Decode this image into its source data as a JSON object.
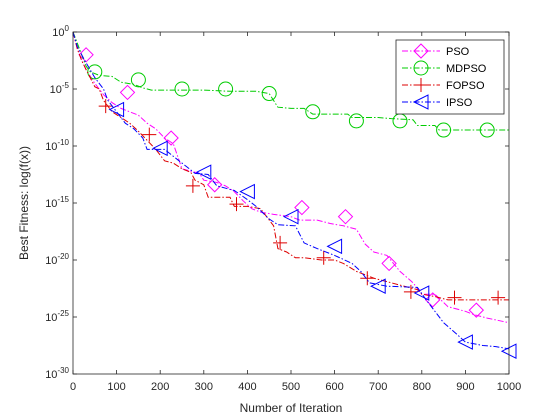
{
  "chart_data": {
    "type": "line",
    "title": "",
    "xlabel": "Number of Iteration",
    "ylabel": "Best Fitness: log(f(x))",
    "xlim": [
      0,
      1000
    ],
    "ylim_exp": [
      -30,
      0
    ],
    "y_scale": "log",
    "x_ticks": [
      "0",
      "100",
      "200",
      "300",
      "400",
      "500",
      "600",
      "700",
      "800",
      "900",
      "1000"
    ],
    "y_tick_exponents": [
      0,
      -5,
      -10,
      -15,
      -20,
      -25,
      -30
    ],
    "y_tick_base": "10",
    "grid": false,
    "legend_position": "top-right",
    "series": [
      {
        "name": "PSO",
        "color": "#ff00ff",
        "marker": "diamond",
        "points": [
          [
            0,
            0
          ],
          [
            10,
            -1.5
          ],
          [
            20,
            -2.5
          ],
          [
            30,
            -3.3
          ],
          [
            50,
            -4.5
          ],
          [
            70,
            -5.5
          ],
          [
            90,
            -6.2
          ],
          [
            110,
            -6.7
          ],
          [
            130,
            -7
          ],
          [
            150,
            -7.3
          ],
          [
            170,
            -8
          ],
          [
            190,
            -8.5
          ],
          [
            210,
            -9.3
          ],
          [
            230,
            -9.8
          ],
          [
            250,
            -12
          ],
          [
            290,
            -12.4
          ],
          [
            300,
            -13
          ],
          [
            330,
            -13.2
          ],
          [
            350,
            -13.5
          ],
          [
            370,
            -14
          ],
          [
            390,
            -14.8
          ],
          [
            410,
            -15.5
          ],
          [
            430,
            -15.8
          ],
          [
            460,
            -16
          ],
          [
            500,
            -16.2
          ],
          [
            520,
            -16.5
          ],
          [
            560,
            -16.5
          ],
          [
            590,
            -16.8
          ],
          [
            620,
            -17
          ],
          [
            650,
            -17.3
          ],
          [
            670,
            -18.6
          ],
          [
            690,
            -19.3
          ],
          [
            720,
            -19.6
          ],
          [
            750,
            -21
          ],
          [
            780,
            -22
          ],
          [
            800,
            -23
          ],
          [
            830,
            -23
          ],
          [
            860,
            -24.1
          ],
          [
            900,
            -24.5
          ],
          [
            920,
            -24.8
          ],
          [
            950,
            -25.1
          ],
          [
            1000,
            -25.5
          ]
        ],
        "markers": [
          [
            30,
            -2
          ],
          [
            125,
            -5.3
          ],
          [
            225,
            -9.3
          ],
          [
            325,
            -13.4
          ],
          [
            525,
            -15.4
          ],
          [
            625,
            -16.2
          ],
          [
            725,
            -20.3
          ],
          [
            825,
            -23.5
          ],
          [
            925,
            -24.4
          ]
        ]
      },
      {
        "name": "MDPSO",
        "color": "#00cc00",
        "marker": "circle",
        "points": [
          [
            0,
            0
          ],
          [
            10,
            -1
          ],
          [
            20,
            -2
          ],
          [
            30,
            -3
          ],
          [
            40,
            -3.5
          ],
          [
            60,
            -3.8
          ],
          [
            90,
            -3.9
          ],
          [
            110,
            -4.4
          ],
          [
            140,
            -4.6
          ],
          [
            160,
            -4.9
          ],
          [
            180,
            -5.1
          ],
          [
            240,
            -5.1
          ],
          [
            300,
            -5.1
          ],
          [
            360,
            -5.2
          ],
          [
            420,
            -5.2
          ],
          [
            450,
            -5.4
          ],
          [
            470,
            -6.6
          ],
          [
            500,
            -6.7
          ],
          [
            530,
            -6.7
          ],
          [
            550,
            -7.2
          ],
          [
            630,
            -7.2
          ],
          [
            640,
            -7.5
          ],
          [
            700,
            -7.5
          ],
          [
            730,
            -7.6
          ],
          [
            780,
            -7.7
          ],
          [
            790,
            -8.2
          ],
          [
            830,
            -8.2
          ],
          [
            840,
            -8.6
          ],
          [
            900,
            -8.6
          ],
          [
            940,
            -8.6
          ],
          [
            1000,
            -8.6
          ]
        ],
        "markers": [
          [
            50,
            -3.5
          ],
          [
            150,
            -4.2
          ],
          [
            250,
            -5
          ],
          [
            350,
            -5
          ],
          [
            450,
            -5.4
          ],
          [
            550,
            -7
          ],
          [
            650,
            -7.8
          ],
          [
            750,
            -7.8
          ],
          [
            850,
            -8.6
          ],
          [
            950,
            -8.6
          ]
        ]
      },
      {
        "name": "FOPSO",
        "color": "#dd0000",
        "marker": "plus",
        "points": [
          [
            0,
            0
          ],
          [
            10,
            -1.5
          ],
          [
            20,
            -2.5
          ],
          [
            30,
            -3.3
          ],
          [
            50,
            -4.8
          ],
          [
            60,
            -5
          ],
          [
            70,
            -6
          ],
          [
            90,
            -7
          ],
          [
            110,
            -7.5
          ],
          [
            130,
            -8
          ],
          [
            150,
            -8.7
          ],
          [
            170,
            -9.5
          ],
          [
            190,
            -10.3
          ],
          [
            210,
            -11.3
          ],
          [
            230,
            -11.5
          ],
          [
            250,
            -12
          ],
          [
            270,
            -12.3
          ],
          [
            280,
            -13
          ],
          [
            300,
            -13.4
          ],
          [
            310,
            -14.5
          ],
          [
            360,
            -14.5
          ],
          [
            370,
            -15.3
          ],
          [
            400,
            -15.3
          ],
          [
            430,
            -15.5
          ],
          [
            460,
            -17
          ],
          [
            470,
            -19
          ],
          [
            490,
            -19.3
          ],
          [
            510,
            -19.8
          ],
          [
            530,
            -19.8
          ],
          [
            570,
            -20
          ],
          [
            600,
            -20
          ],
          [
            620,
            -20.3
          ],
          [
            650,
            -21
          ],
          [
            690,
            -21.6
          ],
          [
            750,
            -22.2
          ],
          [
            790,
            -22.6
          ],
          [
            800,
            -23
          ],
          [
            830,
            -23.2
          ],
          [
            860,
            -23.5
          ],
          [
            1000,
            -23.5
          ]
        ],
        "markers": [
          [
            75,
            -6.5
          ],
          [
            175,
            -9
          ],
          [
            275,
            -13.5
          ],
          [
            375,
            -15.1
          ],
          [
            475,
            -18.5
          ],
          [
            575,
            -19.8
          ],
          [
            675,
            -21.6
          ],
          [
            775,
            -22.8
          ],
          [
            875,
            -23.3
          ],
          [
            975,
            -23.3
          ]
        ]
      },
      {
        "name": "IPSO",
        "color": "#0000ff",
        "marker": "triangle-left",
        "points": [
          [
            0,
            0
          ],
          [
            10,
            -1.3
          ],
          [
            20,
            -2
          ],
          [
            30,
            -2.7
          ],
          [
            50,
            -4
          ],
          [
            70,
            -5
          ],
          [
            80,
            -6
          ],
          [
            100,
            -7
          ],
          [
            120,
            -8
          ],
          [
            140,
            -8.5
          ],
          [
            160,
            -9.3
          ],
          [
            170,
            -10.3
          ],
          [
            210,
            -10.3
          ],
          [
            240,
            -11.2
          ],
          [
            260,
            -11.8
          ],
          [
            280,
            -12.4
          ],
          [
            310,
            -12.5
          ],
          [
            330,
            -13.5
          ],
          [
            350,
            -13.7
          ],
          [
            370,
            -13.9
          ],
          [
            400,
            -14.7
          ],
          [
            420,
            -15.3
          ],
          [
            450,
            -16.4
          ],
          [
            470,
            -16.9
          ],
          [
            510,
            -17
          ],
          [
            530,
            -18.5
          ],
          [
            560,
            -19
          ],
          [
            600,
            -19.6
          ],
          [
            640,
            -20.3
          ],
          [
            660,
            -21
          ],
          [
            680,
            -22
          ],
          [
            720,
            -22.3
          ],
          [
            790,
            -22.4
          ],
          [
            810,
            -23.5
          ],
          [
            850,
            -25.5
          ],
          [
            880,
            -26.5
          ],
          [
            900,
            -27.2
          ],
          [
            940,
            -27.5
          ],
          [
            970,
            -27.6
          ],
          [
            1000,
            -27.8
          ]
        ],
        "markers": [
          [
            100,
            -6.8
          ],
          [
            200,
            -10.2
          ],
          [
            300,
            -12.3
          ],
          [
            400,
            -14
          ],
          [
            500,
            -16.2
          ],
          [
            600,
            -18.8
          ],
          [
            700,
            -22.3
          ],
          [
            800,
            -22.9
          ],
          [
            900,
            -27.2
          ],
          [
            1000,
            -28
          ]
        ]
      }
    ]
  }
}
